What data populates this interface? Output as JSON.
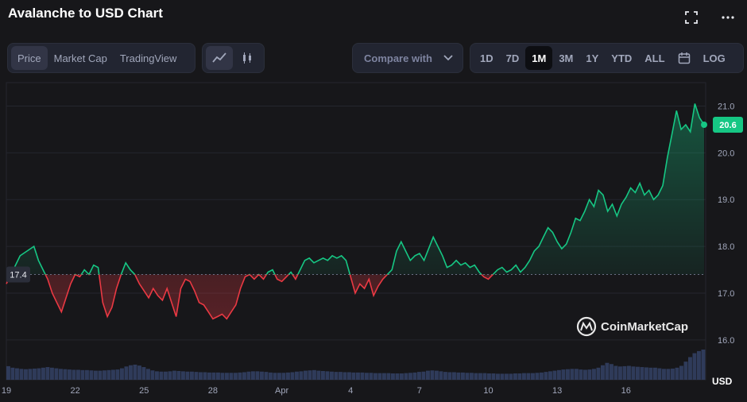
{
  "title": "Avalanche to USD Chart",
  "icons": {
    "fullscreen": "fullscreen-icon",
    "more": "more-icon"
  },
  "tabs": [
    "Price",
    "Market Cap",
    "TradingView"
  ],
  "active_tab": "Price",
  "chart_types": [
    "line-chart-icon",
    "candlestick-icon"
  ],
  "compare": {
    "label": "Compare with"
  },
  "ranges": [
    "1D",
    "7D",
    "1M",
    "3M",
    "1Y",
    "YTD",
    "ALL"
  ],
  "active_range": "1M",
  "log_label": "LOG",
  "calendar_icon": "calendar-icon",
  "watermark": "CoinMarketCap",
  "colors": {
    "up": "#16c784",
    "down": "#ea3943",
    "volume": "#2f3b5a",
    "grid": "#24262e",
    "badge": "#16c784"
  },
  "chart_data": {
    "type": "line",
    "title": "Avalanche to USD Chart",
    "currency_label": "USD",
    "reference_price": 17.4,
    "current_price": 20.6,
    "ylim": [
      15.15,
      21.5
    ],
    "yticks": [
      16.0,
      17.0,
      18.0,
      19.0,
      20.0,
      21.0
    ],
    "ytick_labels": [
      "16.0",
      "17.0",
      "18.0",
      "19.0",
      "20.0",
      "21.0"
    ],
    "xlim": [
      0,
      30.4
    ],
    "xticks": [
      0,
      3,
      6,
      9,
      12,
      15,
      18,
      21,
      24,
      27
    ],
    "xtick_labels": [
      "19",
      "22",
      "25",
      "28",
      "Apr",
      "4",
      "7",
      "10",
      "13",
      "16"
    ],
    "series": [
      {
        "values": [
          [
            0.0,
            17.2
          ],
          [
            0.3,
            17.5
          ],
          [
            0.6,
            17.8
          ],
          [
            0.9,
            17.9
          ],
          [
            1.2,
            18.0
          ],
          [
            1.4,
            17.7
          ],
          [
            1.6,
            17.5
          ],
          [
            1.8,
            17.3
          ],
          [
            2.0,
            17.0
          ],
          [
            2.2,
            16.8
          ],
          [
            2.4,
            16.6
          ],
          [
            2.6,
            16.9
          ],
          [
            2.8,
            17.2
          ],
          [
            3.0,
            17.4
          ],
          [
            3.2,
            17.35
          ],
          [
            3.4,
            17.5
          ],
          [
            3.6,
            17.4
          ],
          [
            3.8,
            17.6
          ],
          [
            4.0,
            17.55
          ],
          [
            4.2,
            16.8
          ],
          [
            4.4,
            16.5
          ],
          [
            4.6,
            16.7
          ],
          [
            4.8,
            17.1
          ],
          [
            5.0,
            17.4
          ],
          [
            5.2,
            17.65
          ],
          [
            5.4,
            17.5
          ],
          [
            5.6,
            17.4
          ],
          [
            5.8,
            17.2
          ],
          [
            6.0,
            17.05
          ],
          [
            6.2,
            16.9
          ],
          [
            6.4,
            17.1
          ],
          [
            6.6,
            16.95
          ],
          [
            6.8,
            16.85
          ],
          [
            7.0,
            17.1
          ],
          [
            7.2,
            16.8
          ],
          [
            7.4,
            16.5
          ],
          [
            7.6,
            17.1
          ],
          [
            7.8,
            17.3
          ],
          [
            8.0,
            17.25
          ],
          [
            8.2,
            17.05
          ],
          [
            8.4,
            16.8
          ],
          [
            8.6,
            16.75
          ],
          [
            8.8,
            16.6
          ],
          [
            9.0,
            16.45
          ],
          [
            9.2,
            16.5
          ],
          [
            9.4,
            16.55
          ],
          [
            9.6,
            16.45
          ],
          [
            9.8,
            16.6
          ],
          [
            10.0,
            16.75
          ],
          [
            10.2,
            17.1
          ],
          [
            10.4,
            17.35
          ],
          [
            10.6,
            17.4
          ],
          [
            10.8,
            17.3
          ],
          [
            11.0,
            17.4
          ],
          [
            11.2,
            17.3
          ],
          [
            11.4,
            17.45
          ],
          [
            11.6,
            17.5
          ],
          [
            11.8,
            17.3
          ],
          [
            12.0,
            17.25
          ],
          [
            12.2,
            17.35
          ],
          [
            12.4,
            17.45
          ],
          [
            12.6,
            17.3
          ],
          [
            12.8,
            17.5
          ],
          [
            13.0,
            17.7
          ],
          [
            13.2,
            17.75
          ],
          [
            13.4,
            17.65
          ],
          [
            13.6,
            17.7
          ],
          [
            13.8,
            17.75
          ],
          [
            14.0,
            17.7
          ],
          [
            14.2,
            17.8
          ],
          [
            14.4,
            17.75
          ],
          [
            14.6,
            17.8
          ],
          [
            14.8,
            17.7
          ],
          [
            15.0,
            17.35
          ],
          [
            15.2,
            17.0
          ],
          [
            15.4,
            17.2
          ],
          [
            15.6,
            17.1
          ],
          [
            15.8,
            17.3
          ],
          [
            16.0,
            16.95
          ],
          [
            16.2,
            17.15
          ],
          [
            16.4,
            17.3
          ],
          [
            16.6,
            17.4
          ],
          [
            16.8,
            17.5
          ],
          [
            17.0,
            17.9
          ],
          [
            17.2,
            18.1
          ],
          [
            17.4,
            17.9
          ],
          [
            17.6,
            17.7
          ],
          [
            17.8,
            17.8
          ],
          [
            18.0,
            17.85
          ],
          [
            18.2,
            17.7
          ],
          [
            18.4,
            17.95
          ],
          [
            18.6,
            18.2
          ],
          [
            18.8,
            18.0
          ],
          [
            19.0,
            17.8
          ],
          [
            19.2,
            17.55
          ],
          [
            19.4,
            17.6
          ],
          [
            19.6,
            17.7
          ],
          [
            19.8,
            17.6
          ],
          [
            20.0,
            17.65
          ],
          [
            20.2,
            17.55
          ],
          [
            20.4,
            17.6
          ],
          [
            20.6,
            17.45
          ],
          [
            20.8,
            17.35
          ],
          [
            21.0,
            17.3
          ],
          [
            21.2,
            17.4
          ],
          [
            21.4,
            17.5
          ],
          [
            21.6,
            17.55
          ],
          [
            21.8,
            17.45
          ],
          [
            22.0,
            17.5
          ],
          [
            22.2,
            17.6
          ],
          [
            22.4,
            17.45
          ],
          [
            22.6,
            17.55
          ],
          [
            22.8,
            17.7
          ],
          [
            23.0,
            17.9
          ],
          [
            23.2,
            18.0
          ],
          [
            23.4,
            18.2
          ],
          [
            23.6,
            18.4
          ],
          [
            23.8,
            18.3
          ],
          [
            24.0,
            18.1
          ],
          [
            24.2,
            17.95
          ],
          [
            24.4,
            18.05
          ],
          [
            24.6,
            18.3
          ],
          [
            24.8,
            18.6
          ],
          [
            25.0,
            18.55
          ],
          [
            25.2,
            18.75
          ],
          [
            25.4,
            19.0
          ],
          [
            25.6,
            18.85
          ],
          [
            25.8,
            19.2
          ],
          [
            26.0,
            19.1
          ],
          [
            26.2,
            18.75
          ],
          [
            26.4,
            18.9
          ],
          [
            26.6,
            18.65
          ],
          [
            26.8,
            18.9
          ],
          [
            27.0,
            19.05
          ],
          [
            27.2,
            19.25
          ],
          [
            27.4,
            19.15
          ],
          [
            27.6,
            19.35
          ],
          [
            27.8,
            19.1
          ],
          [
            28.0,
            19.2
          ],
          [
            28.2,
            19.0
          ],
          [
            28.4,
            19.1
          ],
          [
            28.6,
            19.3
          ],
          [
            28.8,
            19.9
          ],
          [
            29.0,
            20.4
          ],
          [
            29.2,
            20.9
          ],
          [
            29.4,
            20.5
          ],
          [
            29.6,
            20.6
          ],
          [
            29.8,
            20.45
          ],
          [
            30.0,
            21.05
          ],
          [
            30.2,
            20.75
          ],
          [
            30.4,
            20.6
          ]
        ]
      }
    ],
    "volume": [
      0.45,
      0.4,
      0.38,
      0.36,
      0.35,
      0.36,
      0.37,
      0.38,
      0.4,
      0.42,
      0.4,
      0.38,
      0.36,
      0.35,
      0.34,
      0.33,
      0.33,
      0.32,
      0.32,
      0.31,
      0.3,
      0.3,
      0.31,
      0.32,
      0.33,
      0.34,
      0.38,
      0.44,
      0.48,
      0.5,
      0.47,
      0.42,
      0.36,
      0.31,
      0.28,
      0.27,
      0.27,
      0.28,
      0.3,
      0.29,
      0.28,
      0.27,
      0.27,
      0.26,
      0.25,
      0.25,
      0.24,
      0.24,
      0.24,
      0.23,
      0.23,
      0.23,
      0.23,
      0.24,
      0.25,
      0.27,
      0.28,
      0.28,
      0.27,
      0.26,
      0.24,
      0.23,
      0.23,
      0.23,
      0.24,
      0.25,
      0.27,
      0.28,
      0.3,
      0.31,
      0.32,
      0.3,
      0.29,
      0.28,
      0.27,
      0.26,
      0.26,
      0.25,
      0.25,
      0.24,
      0.24,
      0.24,
      0.23,
      0.23,
      0.22,
      0.22,
      0.22,
      0.22,
      0.21,
      0.21,
      0.21,
      0.22,
      0.23,
      0.24,
      0.26,
      0.27,
      0.3,
      0.31,
      0.3,
      0.28,
      0.26,
      0.25,
      0.25,
      0.24,
      0.24,
      0.23,
      0.23,
      0.22,
      0.22,
      0.22,
      0.21,
      0.21,
      0.2,
      0.2,
      0.2,
      0.2,
      0.21,
      0.21,
      0.22,
      0.22,
      0.22,
      0.23,
      0.24,
      0.26,
      0.28,
      0.3,
      0.32,
      0.34,
      0.35,
      0.36,
      0.36,
      0.34,
      0.33,
      0.34,
      0.36,
      0.4,
      0.48,
      0.56,
      0.52,
      0.46,
      0.44,
      0.45,
      0.46,
      0.44,
      0.43,
      0.42,
      0.41,
      0.4,
      0.4,
      0.38,
      0.36,
      0.36,
      0.37,
      0.4,
      0.46,
      0.6,
      0.75,
      0.88,
      0.95,
      1.0
    ],
    "grid": true
  }
}
